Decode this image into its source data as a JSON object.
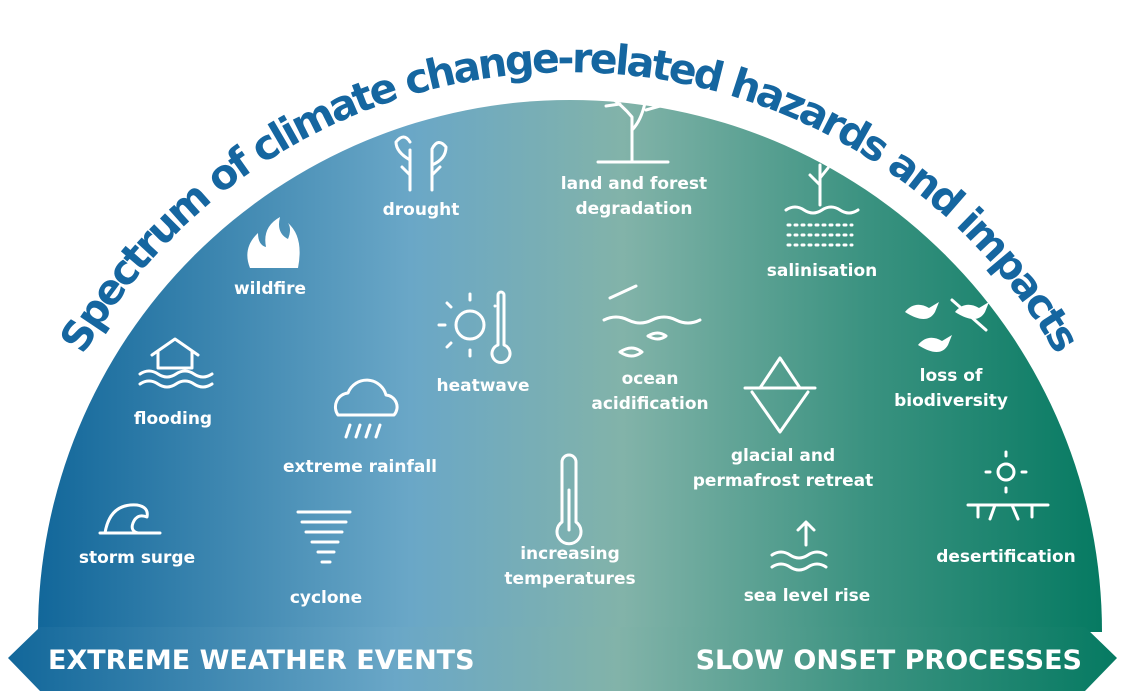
{
  "title": "Spectrum of climate change-related hazards and impacts",
  "hazards": [
    {
      "lines": [
        "storm surge"
      ]
    },
    {
      "lines": [
        "flooding"
      ]
    },
    {
      "lines": [
        "wildfire"
      ]
    },
    {
      "lines": [
        "extreme rainfall"
      ]
    },
    {
      "lines": [
        "cyclone"
      ]
    },
    {
      "lines": [
        "drought"
      ]
    },
    {
      "lines": [
        "heatwave"
      ]
    },
    {
      "lines": [
        "land and forest",
        "degradation"
      ]
    },
    {
      "lines": [
        "increasing",
        "temperatures"
      ]
    },
    {
      "lines": [
        "ocean",
        "acidification"
      ]
    },
    {
      "lines": [
        "salinisation"
      ]
    },
    {
      "lines": [
        "glacial and",
        "permafrost retreat"
      ]
    },
    {
      "lines": [
        "sea level rise"
      ]
    },
    {
      "lines": [
        "loss of",
        "biodiversity"
      ]
    },
    {
      "lines": [
        "desertification"
      ]
    }
  ],
  "spectrum": {
    "left": "EXTREME WEATHER EVENTS",
    "right": "SLOW ONSET PROCESSES"
  }
}
